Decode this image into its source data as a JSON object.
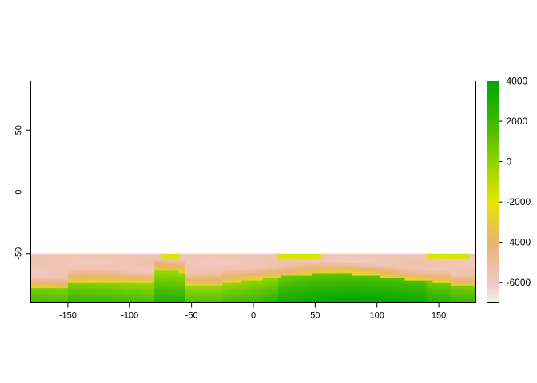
{
  "chart_data": {
    "type": "heatmap",
    "title": "",
    "xlabel": "",
    "ylabel": "",
    "xlim": [
      -180,
      180
    ],
    "ylim": [
      -90,
      90
    ],
    "x_ticks": [
      "-150",
      "-100",
      "-50",
      "0",
      "50",
      "100",
      "150"
    ],
    "x_tick_values": [
      -150,
      -100,
      -50,
      0,
      50,
      100,
      150
    ],
    "y_ticks": [
      "-50",
      "0",
      "50"
    ],
    "y_tick_values": [
      -50,
      0,
      50
    ],
    "data_extent": {
      "lat_min": -90,
      "lat_max": -50
    },
    "colorbar": {
      "ticks": [
        "4000",
        "2000",
        "0",
        "-2000",
        "-4000",
        "-6000"
      ],
      "tick_values": [
        4000,
        2000,
        0,
        -2000,
        -4000,
        -6000
      ],
      "range": [
        -7000,
        4000
      ],
      "color_stops": [
        {
          "value": -7000,
          "color": "#f2f2f2"
        },
        {
          "value": -6000,
          "color": "#f0c9c0"
        },
        {
          "value": -4000,
          "color": "#ebb175"
        },
        {
          "value": -2000,
          "color": "#e6e600"
        },
        {
          "value": 0,
          "color": "#8ed400"
        },
        {
          "value": 2000,
          "color": "#3db800"
        },
        {
          "value": 4000,
          "color": "#00a600"
        }
      ]
    },
    "grid": false,
    "legend_position": "right"
  }
}
